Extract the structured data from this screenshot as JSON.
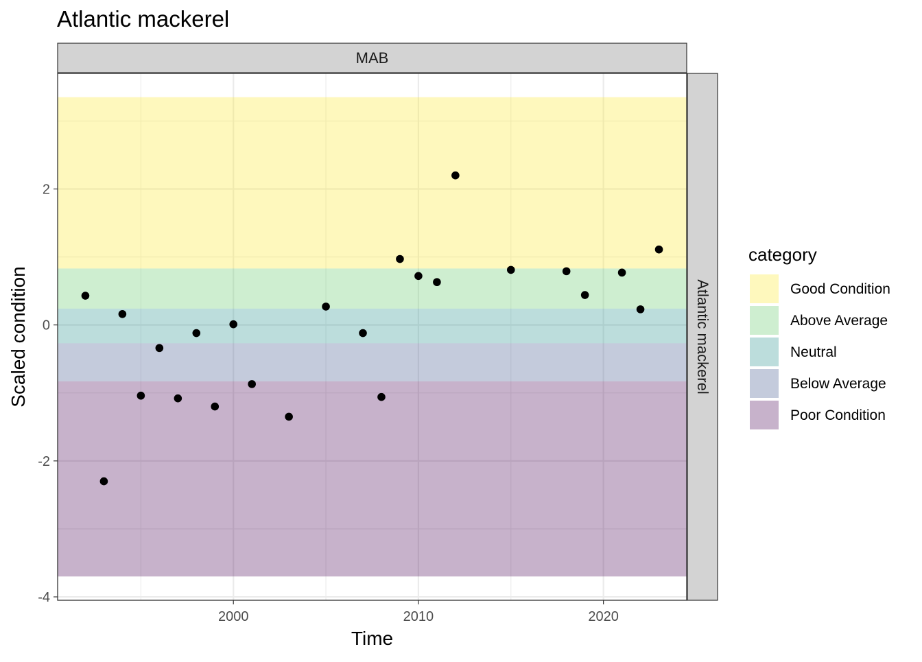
{
  "chart_data": {
    "type": "scatter",
    "title": "Atlantic mackerel",
    "facet_top": "MAB",
    "facet_right": "Atlantic mackerel",
    "xlabel": "Time",
    "ylabel": "Scaled condition",
    "xlim": [
      1990.5,
      2024.5
    ],
    "ylim": [
      -4.05,
      3.7
    ],
    "x_ticks": [
      2000,
      2010,
      2020
    ],
    "x_tick_labels": [
      "2000",
      "2010",
      "2020"
    ],
    "y_ticks": [
      -4,
      -2,
      0,
      2
    ],
    "y_tick_labels": [
      "-4",
      "-2",
      "0",
      "2"
    ],
    "grid": true,
    "legend": {
      "title": "category",
      "position": "right",
      "entries": [
        {
          "label": "Good Condition",
          "color": "#FDE725"
        },
        {
          "label": "Above Average",
          "color": "#5DC863"
        },
        {
          "label": "Neutral",
          "color": "#21908C"
        },
        {
          "label": "Below Average",
          "color": "#3B528B"
        },
        {
          "label": "Poor Condition",
          "color": "#440154"
        }
      ]
    },
    "bands": [
      {
        "label": "Good Condition",
        "ymin": 0.83,
        "ymax": 3.35,
        "color": "#FDE725"
      },
      {
        "label": "Above Average",
        "ymin": 0.24,
        "ymax": 0.83,
        "color": "#5DC863"
      },
      {
        "label": "Neutral",
        "ymin": -0.27,
        "ymax": 0.24,
        "color": "#21908C"
      },
      {
        "label": "Below Average",
        "ymin": -0.83,
        "ymax": -0.27,
        "color": "#3B528B"
      },
      {
        "label": "Poor Condition",
        "ymin": -3.7,
        "ymax": -0.83,
        "color": "#440154"
      }
    ],
    "band_opacity": 0.3,
    "points": [
      {
        "x": 1992,
        "y": 0.43
      },
      {
        "x": 1993,
        "y": -2.3
      },
      {
        "x": 1994,
        "y": 0.16
      },
      {
        "x": 1995,
        "y": -1.04
      },
      {
        "x": 1996,
        "y": -0.34
      },
      {
        "x": 1997,
        "y": -1.08
      },
      {
        "x": 1998,
        "y": -0.12
      },
      {
        "x": 1999,
        "y": -1.2
      },
      {
        "x": 2000,
        "y": 0.01
      },
      {
        "x": 2001,
        "y": -0.87
      },
      {
        "x": 2003,
        "y": -1.35
      },
      {
        "x": 2005,
        "y": 0.27
      },
      {
        "x": 2007,
        "y": -0.12
      },
      {
        "x": 2008,
        "y": -1.06
      },
      {
        "x": 2009,
        "y": 0.97
      },
      {
        "x": 2010,
        "y": 0.72
      },
      {
        "x": 2011,
        "y": 0.63
      },
      {
        "x": 2012,
        "y": 2.2
      },
      {
        "x": 2015,
        "y": 0.81
      },
      {
        "x": 2018,
        "y": 0.79
      },
      {
        "x": 2019,
        "y": 0.44
      },
      {
        "x": 2021,
        "y": 0.77
      },
      {
        "x": 2022,
        "y": 0.23
      },
      {
        "x": 2023,
        "y": 1.11
      }
    ]
  }
}
